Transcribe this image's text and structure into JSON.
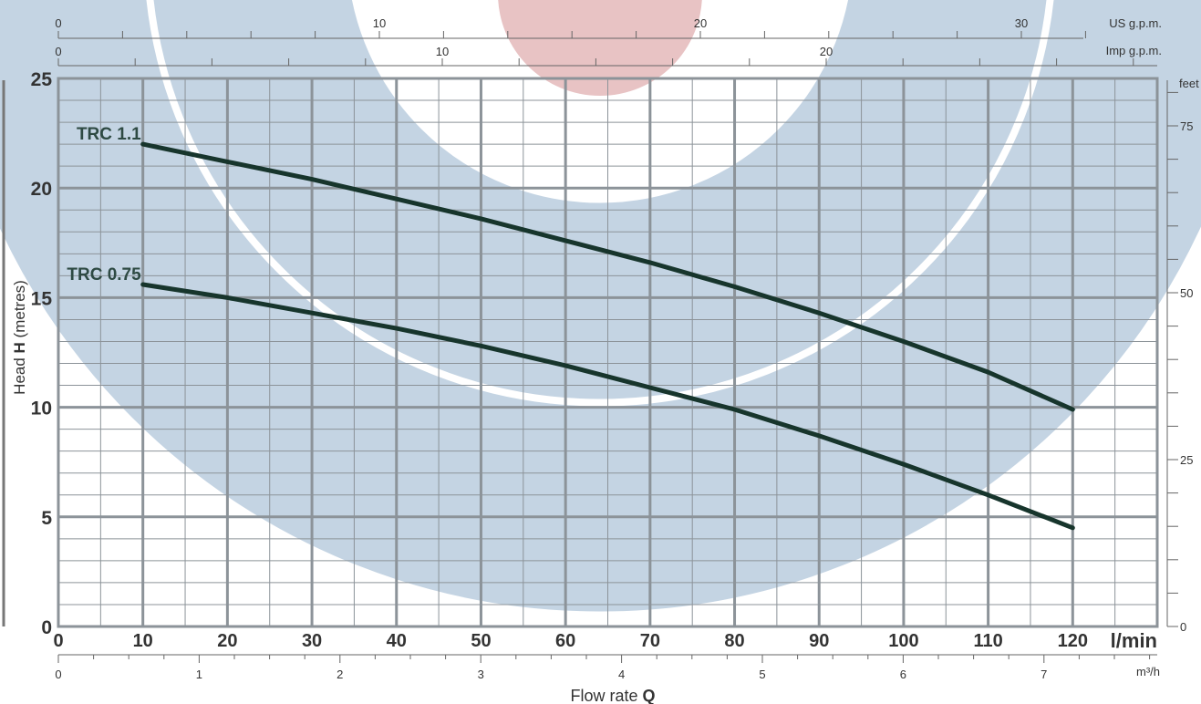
{
  "chart_data": {
    "type": "line",
    "xlabel": "Flow rate",
    "xlabel_bold": "Q",
    "ylabel": "Head",
    "ylabel_bold": "H",
    "ylabel_unit": "(metres)",
    "xlim": [
      0,
      130
    ],
    "ylim": [
      0,
      25
    ],
    "x_unit": "l/min",
    "x_ticks": [
      "0",
      "10",
      "20",
      "30",
      "40",
      "50",
      "60",
      "70",
      "80",
      "90",
      "100",
      "110",
      "120"
    ],
    "y_ticks": [
      "0",
      "5",
      "10",
      "15",
      "20",
      "25"
    ],
    "series": [
      {
        "name": "TRC 1.1",
        "x": [
          10,
          20,
          30,
          40,
          50,
          60,
          70,
          80,
          90,
          100,
          110,
          120
        ],
        "y": [
          22.0,
          21.2,
          20.4,
          19.5,
          18.6,
          17.6,
          16.6,
          15.5,
          14.3,
          13.0,
          11.6,
          9.9
        ]
      },
      {
        "name": "TRC 0.75",
        "x": [
          10,
          20,
          30,
          40,
          50,
          60,
          70,
          80,
          90,
          100,
          110,
          120
        ],
        "y": [
          15.6,
          15.0,
          14.3,
          13.6,
          12.8,
          11.9,
          10.9,
          9.9,
          8.7,
          7.4,
          6.0,
          4.5
        ]
      }
    ],
    "secondary_axes": {
      "us_gpm": {
        "label": "US g.p.m.",
        "ticks": [
          "0",
          "10",
          "20",
          "30"
        ]
      },
      "imp_gpm": {
        "label": "Imp g.p.m.",
        "ticks": [
          "0",
          "10",
          "20"
        ]
      },
      "m3h": {
        "label": "m³/h",
        "ticks": [
          "0",
          "1",
          "2",
          "3",
          "4",
          "5",
          "6",
          "7"
        ]
      },
      "feet": {
        "label": "feet",
        "ticks": [
          "0",
          "25",
          "50",
          "75"
        ]
      }
    },
    "grid": true,
    "colors": {
      "curve": "#17352c",
      "grid": "#8c9399",
      "ring_blue": "#c4d4e3",
      "ring_red": "#e8c3c4"
    }
  }
}
